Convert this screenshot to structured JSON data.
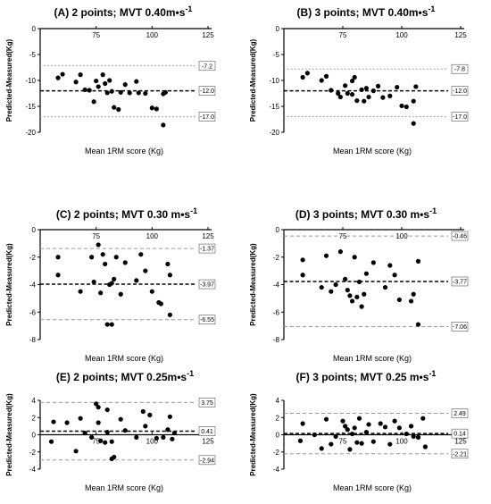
{
  "chart_data": [
    {
      "type": "scatter",
      "panel_title": "(A) 2 points; MVT 0.40m",
      "unit_main": "s",
      "unit_sup": "-1",
      "xlabel": "Mean 1RM score (Kg)",
      "ylabel": "Predicted-Measured(Kg)",
      "xlim": [
        50,
        125
      ],
      "ylim": [
        -20,
        0
      ],
      "xticks": [
        "75",
        "100",
        "125"
      ],
      "yticks": [
        "0",
        "-5",
        "-10",
        "-15",
        "-20"
      ],
      "xtick_values": [
        75,
        100,
        125
      ],
      "ytick_values": [
        0,
        -5,
        -10,
        -15,
        -20
      ],
      "mean_bias": -12.0,
      "upper_loa": -7.2,
      "lower_loa": -17.0,
      "mean_label": "-12.0",
      "upper_label": "-7.2",
      "lower_label": "-17.0",
      "mean_style": "black-dashed",
      "loa_style": "dotted",
      "points": [
        [
          58,
          -9.5
        ],
        [
          60,
          -8.8
        ],
        [
          66,
          -10.3
        ],
        [
          68,
          -8.9
        ],
        [
          70,
          -11.8
        ],
        [
          72,
          -11.9
        ],
        [
          74,
          -14.1
        ],
        [
          75,
          -10.1
        ],
        [
          76,
          -11.2
        ],
        [
          78,
          -8.9
        ],
        [
          79,
          -10.6
        ],
        [
          80,
          -12.4
        ],
        [
          81,
          -10.0
        ],
        [
          82,
          -12.1
        ],
        [
          83,
          -15.2
        ],
        [
          85,
          -15.6
        ],
        [
          86,
          -12.3
        ],
        [
          88,
          -10.8
        ],
        [
          90,
          -12.4
        ],
        [
          93,
          -10.2
        ],
        [
          94,
          -12.4
        ],
        [
          97,
          -12.5
        ],
        [
          100,
          -15.3
        ],
        [
          102,
          -15.5
        ],
        [
          105,
          -12.6
        ],
        [
          106,
          -12.3
        ],
        [
          105,
          -18.6
        ]
      ]
    },
    {
      "type": "scatter",
      "panel_title": "(B) 3 points; MVT 0.40m",
      "unit_main": "s",
      "unit_sup": "-1",
      "xlabel": "Mean 1RM score (Kg)",
      "ylabel": "Predicted-Measured(Kg)",
      "xlim": [
        50,
        125
      ],
      "ylim": [
        -20,
        0
      ],
      "xticks": [
        "75",
        "100",
        "125"
      ],
      "yticks": [
        "0",
        "-5",
        "-10",
        "-15",
        "-20"
      ],
      "xtick_values": [
        75,
        100,
        125
      ],
      "ytick_values": [
        0,
        -5,
        -10,
        -15,
        -20
      ],
      "mean_bias": -12.0,
      "upper_loa": -7.8,
      "lower_loa": -17.0,
      "mean_label": "-12.0",
      "upper_label": "-7.8",
      "lower_label": "-17.0",
      "mean_style": "black-dashed",
      "loa_style": "dotted",
      "points": [
        [
          58,
          -9.4
        ],
        [
          60,
          -8.6
        ],
        [
          66,
          -10.0
        ],
        [
          68,
          -9.2
        ],
        [
          70,
          -11.9
        ],
        [
          73,
          -12.5
        ],
        [
          74,
          -13.2
        ],
        [
          76,
          -11.0
        ],
        [
          77,
          -12.5
        ],
        [
          79,
          -10.1
        ],
        [
          79,
          -12.7
        ],
        [
          80,
          -9.4
        ],
        [
          81,
          -13.9
        ],
        [
          83,
          -11.8
        ],
        [
          84,
          -14.0
        ],
        [
          85,
          -11.5
        ],
        [
          86,
          -13.2
        ],
        [
          88,
          -12.0
        ],
        [
          90,
          -11.1
        ],
        [
          92,
          -13.3
        ],
        [
          95,
          -13.0
        ],
        [
          98,
          -11.3
        ],
        [
          100,
          -14.9
        ],
        [
          102,
          -15.1
        ],
        [
          105,
          -14.0
        ],
        [
          106,
          -11.2
        ],
        [
          105,
          -18.3
        ]
      ]
    },
    {
      "type": "scatter",
      "panel_title": "(C) 2 points; MVT 0.30 m",
      "unit_main": "s",
      "unit_sup": "-1",
      "xlabel": "Mean 1RM score (Kg)",
      "ylabel": "Predicted-Measured(Kg)",
      "xlim": [
        50,
        125
      ],
      "ylim": [
        -8,
        0
      ],
      "xticks": [
        "75",
        "100",
        "125"
      ],
      "yticks": [
        "0",
        "-2",
        "-4",
        "-6",
        "-8"
      ],
      "xtick_values": [
        75,
        100,
        125
      ],
      "ytick_values": [
        0,
        -2,
        -4,
        -6,
        -8
      ],
      "mean_bias": -3.97,
      "upper_loa": -1.37,
      "lower_loa": -6.55,
      "mean_label": "-3.97",
      "upper_label": "-1.37",
      "lower_label": "-6.55",
      "mean_style": "black-dashed",
      "loa_style": "gray-dashed",
      "points": [
        [
          58,
          -2.0
        ],
        [
          58,
          -3.3
        ],
        [
          68,
          -4.5
        ],
        [
          73,
          -2.0
        ],
        [
          74,
          -3.8
        ],
        [
          76,
          -1.1
        ],
        [
          77,
          -4.6
        ],
        [
          78,
          -1.8
        ],
        [
          79,
          -2.5
        ],
        [
          80,
          -6.9
        ],
        [
          81,
          -4.0
        ],
        [
          82,
          -3.9
        ],
        [
          82,
          -6.9
        ],
        [
          83,
          -3.6
        ],
        [
          84,
          -2.0
        ],
        [
          86,
          -4.7
        ],
        [
          88,
          -2.4
        ],
        [
          93,
          -3.7
        ],
        [
          95,
          -1.8
        ],
        [
          97,
          -3.0
        ],
        [
          100,
          -4.5
        ],
        [
          103,
          -5.3
        ],
        [
          104,
          -5.4
        ],
        [
          107,
          -2.5
        ],
        [
          108,
          -3.3
        ],
        [
          108,
          -6.2
        ]
      ]
    },
    {
      "type": "scatter",
      "panel_title": "(D) 3 points; MVT 0.30 m",
      "unit_main": "s",
      "unit_sup": "-1",
      "xlabel": "Mean 1RM score (Kg)",
      "ylabel": "Predicted-Measured(Kg)",
      "xlim": [
        50,
        125
      ],
      "ylim": [
        -8,
        0
      ],
      "xticks": [
        "75",
        "100",
        "125"
      ],
      "yticks": [
        "0",
        "-2",
        "-4",
        "-6",
        "-8"
      ],
      "xtick_values": [
        75,
        100,
        125
      ],
      "ytick_values": [
        0,
        -2,
        -4,
        -6,
        -8
      ],
      "mean_bias": -3.77,
      "upper_loa": -0.46,
      "lower_loa": -7.06,
      "mean_label": "-3.77",
      "upper_label": "-0.46",
      "lower_label": "-7.06",
      "mean_style": "black-dashed",
      "loa_style": "gray-dashed",
      "points": [
        [
          58,
          -2.2
        ],
        [
          58,
          -3.3
        ],
        [
          66,
          -4.2
        ],
        [
          68,
          -1.9
        ],
        [
          70,
          -4.5
        ],
        [
          72,
          -4.0
        ],
        [
          74,
          -1.6
        ],
        [
          76,
          -3.6
        ],
        [
          77,
          -4.4
        ],
        [
          78,
          -4.8
        ],
        [
          79,
          -5.2
        ],
        [
          80,
          -2.0
        ],
        [
          81,
          -4.9
        ],
        [
          82,
          -3.8
        ],
        [
          83,
          -5.6
        ],
        [
          84,
          -4.7
        ],
        [
          85,
          -3.2
        ],
        [
          88,
          -2.4
        ],
        [
          93,
          -4.2
        ],
        [
          95,
          -2.6
        ],
        [
          97,
          -3.3
        ],
        [
          99,
          -5.1
        ],
        [
          104,
          -5.2
        ],
        [
          105,
          -4.7
        ],
        [
          107,
          -2.3
        ],
        [
          107,
          -6.9
        ]
      ]
    },
    {
      "type": "scatter",
      "panel_title": "(E) 2 points; MVT 0.25m",
      "unit_main": "s",
      "unit_sup": "-1",
      "xlabel": "Mean 1RM score (Kg)",
      "ylabel": "Predicted-Measured(Kg)",
      "xlim": [
        50,
        125
      ],
      "ylim": [
        -4,
        4
      ],
      "xticks": [
        "75",
        "100",
        "125"
      ],
      "yticks": [
        "4",
        "2",
        "0",
        "-2",
        "-4"
      ],
      "xtick_values": [
        75,
        100,
        125
      ],
      "ytick_values": [
        4,
        2,
        0,
        -2,
        -4
      ],
      "mean_bias": 0.41,
      "upper_loa": 3.75,
      "lower_loa": -2.94,
      "mean_label": "0.41",
      "upper_label": "3.75",
      "lower_label": "-2.94",
      "mean_style": "black-dashed",
      "loa_style": "gray-dashed",
      "points": [
        [
          55,
          -0.8
        ],
        [
          56,
          1.5
        ],
        [
          62,
          1.4
        ],
        [
          66,
          -1.9
        ],
        [
          68,
          1.9
        ],
        [
          70,
          0.2
        ],
        [
          73,
          -0.3
        ],
        [
          75,
          3.6
        ],
        [
          76,
          3.2
        ],
        [
          76,
          1.4
        ],
        [
          77,
          -0.7
        ],
        [
          79,
          -0.9
        ],
        [
          80,
          0.3
        ],
        [
          80,
          2.9
        ],
        [
          82,
          -0.8
        ],
        [
          82,
          -2.8
        ],
        [
          83,
          -2.6
        ],
        [
          86,
          1.8
        ],
        [
          88,
          0.5
        ],
        [
          93,
          -0.3
        ],
        [
          96,
          2.7
        ],
        [
          97,
          1.0
        ],
        [
          99,
          2.3
        ],
        [
          102,
          -0.4
        ],
        [
          105,
          -0.3
        ],
        [
          108,
          2.1
        ],
        [
          107,
          0.6
        ],
        [
          110,
          0.2
        ],
        [
          109,
          -0.5
        ]
      ]
    },
    {
      "type": "scatter",
      "panel_title": "(F) 3 points; MVT 0.25 m",
      "unit_main": "s",
      "unit_sup": "-1",
      "xlabel": "Mean 1RM score (Kg)",
      "ylabel": "Predicted-Measured(Kg)",
      "xlim": [
        50,
        125
      ],
      "ylim": [
        -4,
        4
      ],
      "xticks": [
        "75",
        "100",
        "125"
      ],
      "yticks": [
        "4",
        "2",
        "0",
        "-2",
        "-4"
      ],
      "xtick_values": [
        75,
        100,
        125
      ],
      "ytick_values": [
        4,
        2,
        0,
        -2,
        -4
      ],
      "mean_bias": 0.14,
      "upper_loa": 2.49,
      "lower_loa": -2.21,
      "mean_label": "0.14",
      "upper_label": "2.49",
      "lower_label": "-2.21",
      "mean_style": "black-dashed",
      "loa_style": "gray-dashed",
      "points": [
        [
          57,
          -0.7
        ],
        [
          58,
          1.3
        ],
        [
          63,
          0.0
        ],
        [
          66,
          -1.6
        ],
        [
          68,
          1.8
        ],
        [
          70,
          -1.1
        ],
        [
          72,
          -0.2
        ],
        [
          75,
          1.6
        ],
        [
          76,
          1.0
        ],
        [
          77,
          0.6
        ],
        [
          78,
          -1.7
        ],
        [
          79,
          0.1
        ],
        [
          80,
          0.8
        ],
        [
          81,
          -0.9
        ],
        [
          82,
          1.9
        ],
        [
          83,
          -1.0
        ],
        [
          85,
          0.3
        ],
        [
          86,
          1.2
        ],
        [
          88,
          -0.8
        ],
        [
          91,
          1.3
        ],
        [
          93,
          0.9
        ],
        [
          95,
          -1.1
        ],
        [
          97,
          1.6
        ],
        [
          99,
          0.8
        ],
        [
          102,
          0.1
        ],
        [
          104,
          1.0
        ],
        [
          105,
          -0.2
        ],
        [
          107,
          -0.3
        ],
        [
          109,
          1.9
        ],
        [
          110,
          -1.4
        ]
      ]
    }
  ]
}
